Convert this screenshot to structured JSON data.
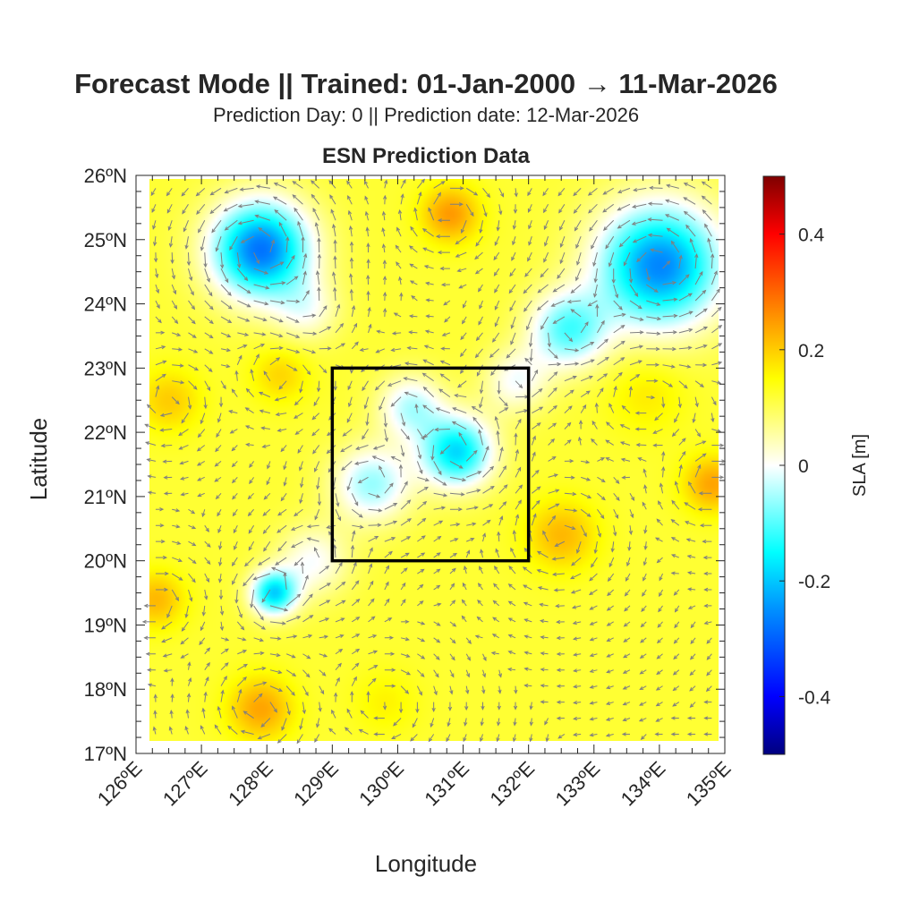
{
  "title": "Forecast Mode || Trained: 01-Jan-2000 → 11-Mar-2026",
  "subtitle": "Prediction Day: 0 || Prediction date: 12-Mar-2026",
  "chart_data": {
    "type": "heatmap",
    "title": "ESN Prediction Data",
    "xlabel": "Longitude",
    "ylabel": "Latitude",
    "xlim": [
      126,
      135
    ],
    "ylim": [
      17,
      26
    ],
    "data_extent": {
      "lon": [
        126.2,
        134.9
      ],
      "lat": [
        17.2,
        25.95
      ]
    },
    "xticks": [
      126,
      127,
      128,
      129,
      130,
      131,
      132,
      133,
      134,
      135
    ],
    "xtick_labels": [
      "126ºE",
      "127ºE",
      "128ºE",
      "129ºE",
      "130ºE",
      "131ºE",
      "132ºE",
      "133ºE",
      "134ºE",
      "135ºE"
    ],
    "yticks": [
      17,
      18,
      19,
      20,
      21,
      22,
      23,
      24,
      25,
      26
    ],
    "ytick_labels": [
      "17ºN",
      "18ºN",
      "19ºN",
      "20ºN",
      "21ºN",
      "22ºN",
      "23ºN",
      "24ºN",
      "25ºN",
      "26ºN"
    ],
    "field": {
      "name": "SLA",
      "background_m": 0.12,
      "features": [
        {
          "lon": 127.9,
          "lat": 24.85,
          "amp": -0.4,
          "radius": 0.75
        },
        {
          "lon": 134.0,
          "lat": 24.6,
          "amp": -0.38,
          "radius": 0.95
        },
        {
          "lon": 132.6,
          "lat": 23.6,
          "amp": -0.22,
          "radius": 0.6
        },
        {
          "lon": 131.8,
          "lat": 22.8,
          "amp": -0.12,
          "radius": 0.5
        },
        {
          "lon": 130.9,
          "lat": 21.7,
          "amp": -0.3,
          "radius": 0.55
        },
        {
          "lon": 130.2,
          "lat": 22.4,
          "amp": -0.16,
          "radius": 0.5
        },
        {
          "lon": 129.6,
          "lat": 21.2,
          "amp": -0.18,
          "radius": 0.6
        },
        {
          "lon": 128.1,
          "lat": 19.5,
          "amp": -0.3,
          "radius": 0.35
        },
        {
          "lon": 128.7,
          "lat": 20.0,
          "amp": -0.12,
          "radius": 0.55
        },
        {
          "lon": 128.6,
          "lat": 23.9,
          "amp": -0.1,
          "radius": 0.5
        },
        {
          "lon": 130.8,
          "lat": 25.4,
          "amp": 0.13,
          "radius": 0.45
        },
        {
          "lon": 132.5,
          "lat": 20.4,
          "amp": 0.1,
          "radius": 0.55
        },
        {
          "lon": 134.8,
          "lat": 21.2,
          "amp": 0.12,
          "radius": 0.45
        },
        {
          "lon": 133.8,
          "lat": 22.6,
          "amp": 0.05,
          "radius": 0.6
        },
        {
          "lon": 127.9,
          "lat": 17.7,
          "amp": 0.12,
          "radius": 0.5
        },
        {
          "lon": 126.3,
          "lat": 19.4,
          "amp": 0.1,
          "radius": 0.45
        },
        {
          "lon": 126.5,
          "lat": 22.5,
          "amp": 0.08,
          "radius": 0.5
        },
        {
          "lon": 128.2,
          "lat": 22.9,
          "amp": 0.07,
          "radius": 0.45
        },
        {
          "lon": 129.8,
          "lat": 17.8,
          "amp": 0.04,
          "radius": 0.5
        }
      ]
    },
    "vectors": {
      "name": "surface currents (geostrophic)",
      "color": "#7f7f7f",
      "spacing_deg": 0.25
    },
    "region_box": {
      "lon": [
        129,
        132
      ],
      "lat": [
        20,
        23
      ],
      "color": "#000000"
    },
    "colorbar": {
      "label": "SLA [m]",
      "range": [
        -0.5,
        0.5
      ],
      "ticks": [
        -0.4,
        -0.2,
        0,
        0.2,
        0.4
      ],
      "tick_labels": [
        "-0.4",
        "-0.2",
        "0",
        "0.2",
        "0.4"
      ],
      "placement": "right",
      "stops": [
        {
          "v": -0.5,
          "c": "#00007f"
        },
        {
          "v": -0.4,
          "c": "#0000ff"
        },
        {
          "v": -0.25,
          "c": "#0090ff"
        },
        {
          "v": -0.15,
          "c": "#00ffff"
        },
        {
          "v": 0,
          "c": "#ffffff"
        },
        {
          "v": 0.15,
          "c": "#ffff00"
        },
        {
          "v": 0.25,
          "c": "#ff9a00"
        },
        {
          "v": 0.4,
          "c": "#ff0000"
        },
        {
          "v": 0.5,
          "c": "#7f0000"
        }
      ]
    }
  }
}
